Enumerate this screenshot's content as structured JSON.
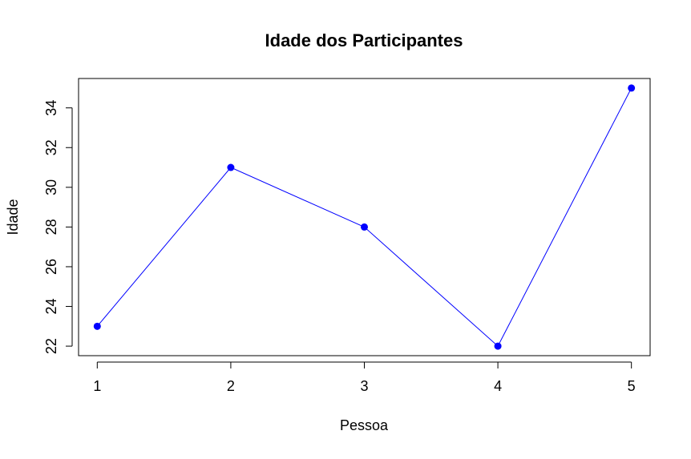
{
  "chart_data": {
    "type": "line",
    "title": "Idade dos Participantes",
    "xlabel": "Pessoa",
    "ylabel": "Idade",
    "x": [
      1,
      2,
      3,
      4,
      5
    ],
    "x_ticks": [
      "1",
      "2",
      "3",
      "4",
      "5"
    ],
    "y_ticks": [
      "22",
      "24",
      "26",
      "28",
      "30",
      "32",
      "34"
    ],
    "xlim": [
      0.86,
      5.14
    ],
    "ylim": [
      21.52,
      35.48
    ],
    "series": [
      {
        "values": [
          23,
          31,
          28,
          22,
          35
        ],
        "color": "#0000ff"
      }
    ],
    "grid": false,
    "legend": "none",
    "markers": "filled-circle"
  }
}
